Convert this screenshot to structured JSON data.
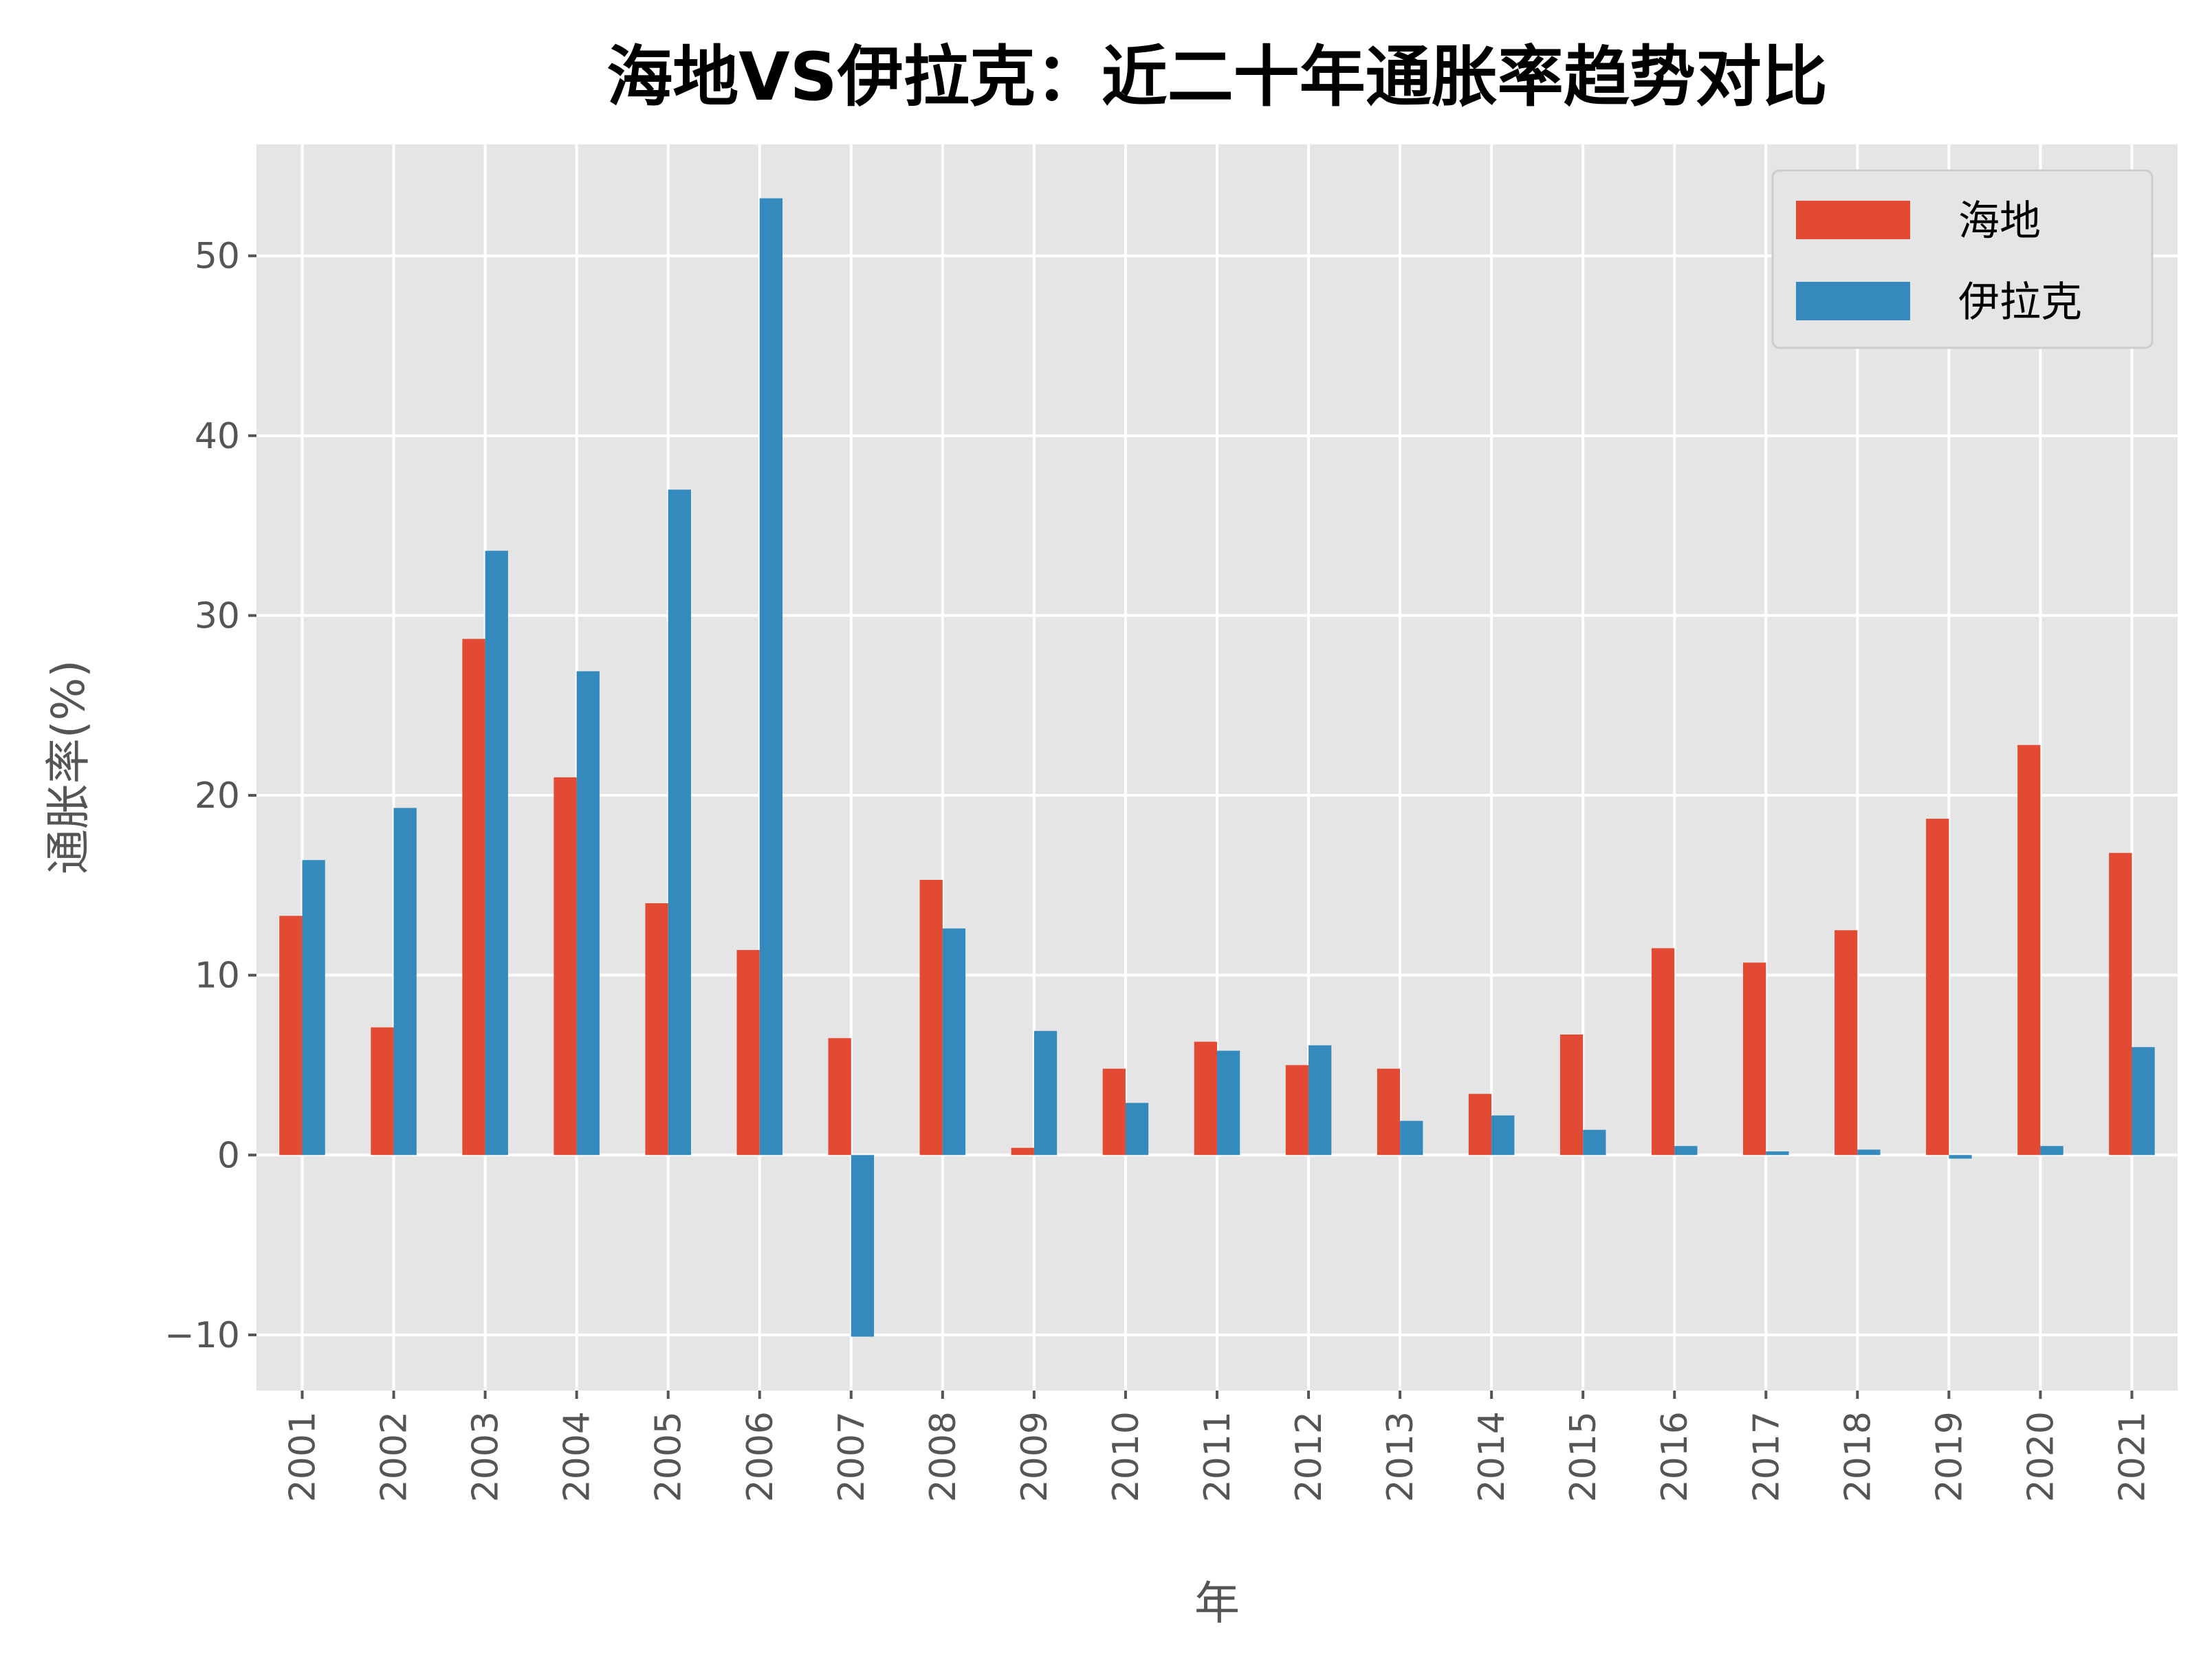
{
  "chart_data": {
    "type": "bar",
    "title": "海地VS伊拉克：近二十年通胀率趋势对比",
    "xlabel": "年",
    "ylabel": "通胀率(%)",
    "categories": [
      "2001",
      "2002",
      "2003",
      "2004",
      "2005",
      "2006",
      "2007",
      "2008",
      "2009",
      "2010",
      "2011",
      "2012",
      "2013",
      "2014",
      "2015",
      "2016",
      "2017",
      "2018",
      "2019",
      "2020",
      "2021"
    ],
    "series": [
      {
        "name": "海地",
        "color": "#E24A33",
        "values": [
          13.3,
          7.1,
          28.7,
          21.0,
          14.0,
          11.4,
          6.5,
          15.3,
          0.4,
          4.8,
          6.3,
          5.0,
          4.8,
          3.4,
          6.7,
          11.5,
          10.7,
          12.5,
          18.7,
          22.8,
          16.8
        ]
      },
      {
        "name": "伊拉克",
        "color": "#348ABD",
        "values": [
          16.4,
          19.3,
          33.6,
          26.9,
          37.0,
          53.2,
          -10.1,
          12.6,
          6.9,
          2.9,
          5.8,
          6.1,
          1.9,
          2.2,
          1.4,
          0.5,
          0.2,
          0.3,
          -0.2,
          0.5,
          6.0
        ]
      }
    ],
    "yticks": [
      -10,
      0,
      10,
      20,
      30,
      40,
      50
    ],
    "ylim": [
      -13.1,
      56.2
    ],
    "grid": true,
    "legend": "top-right",
    "background": "#E5E5E5"
  }
}
